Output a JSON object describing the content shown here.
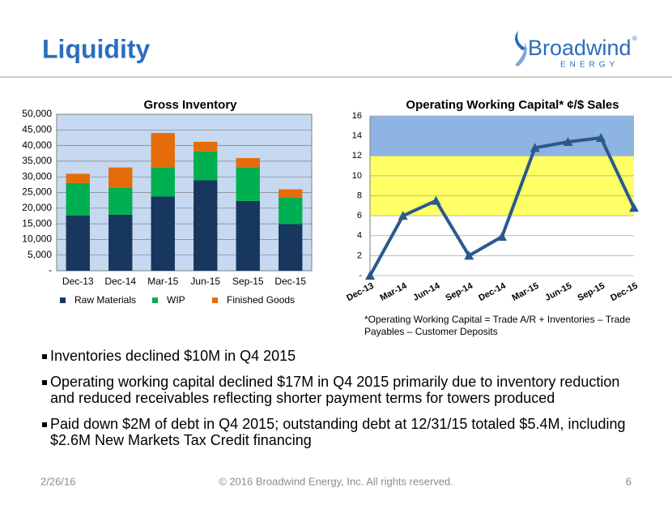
{
  "header": {
    "title": "Liquidity"
  },
  "logo": {
    "name": "Broadwind",
    "mark": "®",
    "tagline": "ENERGY"
  },
  "chart_data": [
    {
      "type": "bar",
      "stacked": true,
      "title": "Gross Inventory",
      "categories": [
        "Dec-13",
        "Dec-14",
        "Mar-15",
        "Jun-15",
        "Sep-15",
        "Dec-15"
      ],
      "series": [
        {
          "name": "Raw Materials",
          "color": "#17375e",
          "values": [
            17700,
            17900,
            23700,
            28900,
            22300,
            14900
          ]
        },
        {
          "name": "WIP",
          "color": "#00b050",
          "values": [
            10300,
            8600,
            9300,
            9200,
            10700,
            8400
          ]
        },
        {
          "name": "Finished Goods",
          "color": "#e46c0a",
          "values": [
            3000,
            6500,
            11000,
            3100,
            3000,
            2700
          ]
        }
      ],
      "ylim": [
        0,
        50000
      ],
      "yticks": [
        {
          "value": 0,
          "label": "-"
        },
        {
          "value": 5000,
          "label": "5,000"
        },
        {
          "value": 10000,
          "label": "10,000"
        },
        {
          "value": 15000,
          "label": "15,000"
        },
        {
          "value": 20000,
          "label": "20,000"
        },
        {
          "value": 25000,
          "label": "25,000"
        },
        {
          "value": 30000,
          "label": "30,000"
        },
        {
          "value": 35000,
          "label": "35,000"
        },
        {
          "value": 40000,
          "label": "40,000"
        },
        {
          "value": 45000,
          "label": "45,000"
        },
        {
          "value": 50000,
          "label": "50,000"
        }
      ],
      "grid": true,
      "background": "#c6d9f1",
      "legend": "bottom"
    },
    {
      "type": "line",
      "title": "Operating Working Capital* ¢/$ Sales",
      "categories": [
        "Dec-13",
        "Mar-14",
        "Jun-14",
        "Sep-14",
        "Dec-14",
        "Mar-15",
        "Jun-15",
        "Sep-15",
        "Dec-15"
      ],
      "values": [
        0,
        6,
        7.5,
        2,
        3.9,
        12.8,
        13.4,
        13.8,
        6.8
      ],
      "color": "#2a5a8c",
      "ylim": [
        0,
        16
      ],
      "yticks": [
        {
          "value": 0,
          "label": "-"
        },
        2,
        4,
        6,
        8,
        10,
        12,
        14,
        16
      ],
      "grid": true,
      "bands": [
        {
          "from": 12,
          "to": 16,
          "color": "#8eb4e3"
        },
        {
          "from": 6,
          "to": 12,
          "color": "#ffff66"
        }
      ],
      "note": [
        "*Operating Working Capital = Trade A/R + Inventories – Trade",
        "Payables – Customer Deposits"
      ]
    }
  ],
  "bullets": [
    [
      "Inventories declined $10M in Q4 2015"
    ],
    [
      "Operating working capital declined $17M in Q4 2015 primarily due to inventory reduction",
      "and reduced receivables reflecting shorter payment terms for towers produced"
    ],
    [
      "Paid down $2M of debt in Q4 2015; outstanding debt at 12/31/15 totaled $5.4M, including",
      "$2.6M New Markets Tax Credit financing"
    ]
  ],
  "footer": {
    "date": "2/26/16",
    "copyright": "© 2016 Broadwind Energy, Inc. All rights reserved.",
    "page": "6"
  }
}
